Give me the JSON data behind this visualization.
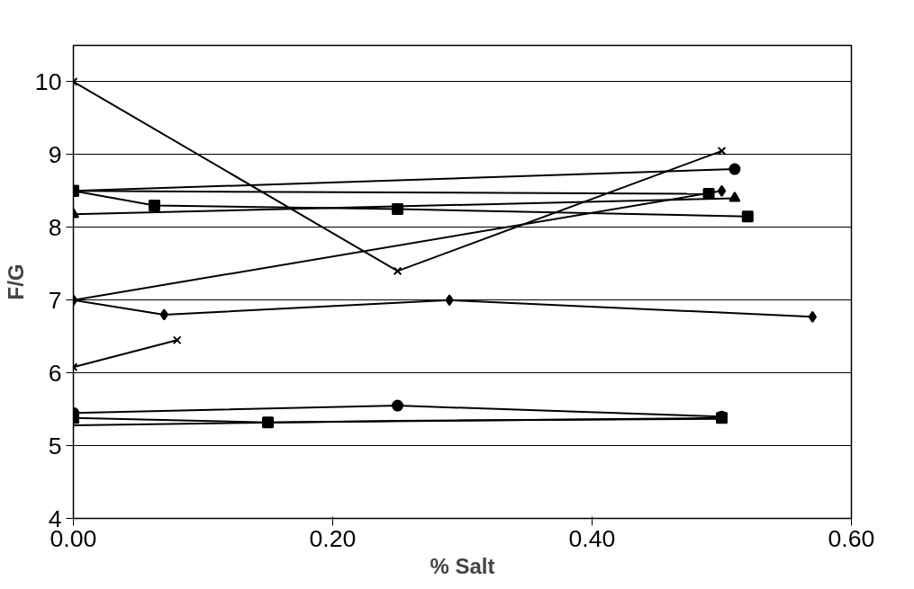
{
  "chart_data": {
    "type": "line",
    "xlabel": "% Salt",
    "ylabel": "F/G",
    "xlim": [
      0,
      0.6
    ],
    "xticks": [
      {
        "value": 0,
        "label": "0.00"
      },
      {
        "value": 0.2,
        "label": "0.20"
      },
      {
        "value": 0.4,
        "label": "0.40"
      },
      {
        "value": 0.6,
        "label": "0.60"
      }
    ],
    "ylim": [
      4,
      10.5
    ],
    "yticks": [
      4,
      5,
      6,
      7,
      8,
      9,
      10
    ],
    "grid": "y",
    "line_style": "solid",
    "series": [
      {
        "color": "#000000",
        "marker": "cross",
        "x": [
          0,
          0.25,
          0.5
        ],
        "values": [
          10.0,
          7.4,
          9.05
        ]
      },
      {
        "color": "#000000",
        "marker": "circle",
        "x": [
          0,
          0.51
        ],
        "values": [
          8.5,
          8.8
        ]
      },
      {
        "color": "#000000",
        "marker": "square",
        "x": [
          0,
          0.49
        ],
        "values": [
          8.5,
          8.46
        ]
      },
      {
        "color": "#000000",
        "marker": "square",
        "x": [
          0,
          0.0625,
          0.25,
          0.52
        ],
        "values": [
          8.5,
          8.3,
          8.25,
          8.15
        ]
      },
      {
        "color": "#000000",
        "marker": "triangle",
        "x": [
          0,
          0.51
        ],
        "values": [
          8.18,
          8.4
        ]
      },
      {
        "color": "#000000",
        "marker": "diamond",
        "x": [
          0,
          0.5
        ],
        "values": [
          7.0,
          8.5
        ]
      },
      {
        "color": "#000000",
        "marker": "diamond",
        "x": [
          0,
          0.07,
          0.29,
          0.57
        ],
        "values": [
          7.0,
          6.8,
          7.0,
          6.77
        ]
      },
      {
        "color": "#000000",
        "marker": "cross",
        "x": [
          0,
          0.08
        ],
        "values": [
          6.08,
          6.45
        ]
      },
      {
        "color": "#000000",
        "marker": "circle",
        "x": [
          0,
          0.25,
          0.5
        ],
        "values": [
          5.45,
          5.55,
          5.4
        ]
      },
      {
        "color": "#000000",
        "marker": "square",
        "x": [
          0,
          0.15,
          0.5
        ],
        "values": [
          5.38,
          5.32,
          5.38
        ]
      },
      {
        "color": "#000000",
        "marker": "none",
        "x": [
          0,
          0.25,
          0.5
        ],
        "values": [
          5.28,
          5.34,
          5.37
        ]
      }
    ]
  }
}
